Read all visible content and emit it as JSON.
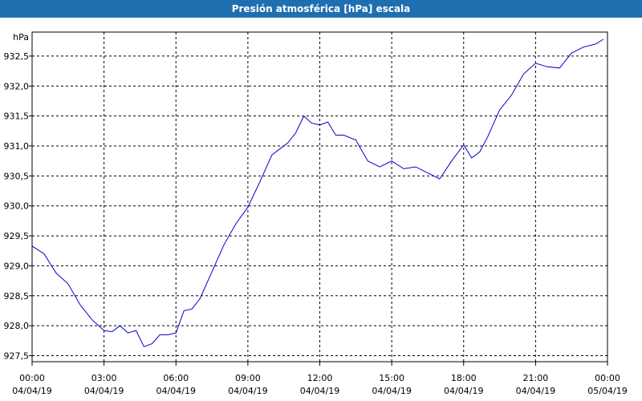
{
  "window": {
    "title": "Presión atmosférica [hPa] escala"
  },
  "chart_data": {
    "type": "line",
    "ylabel": "hPa",
    "ylim": [
      927.4,
      932.9
    ],
    "yticks": [
      927.5,
      928.0,
      928.5,
      929.0,
      929.5,
      930.0,
      930.5,
      931.0,
      931.5,
      932.0,
      932.5
    ],
    "ytick_labels": [
      "927,5",
      "928,0",
      "928,5",
      "929,0",
      "929,5",
      "930,0",
      "930,5",
      "931,0",
      "931,5",
      "932,0",
      "932,5"
    ],
    "xlim": [
      "04/04/19 00:00",
      "05/04/19 00:00"
    ],
    "xticks": [
      {
        "time": "00:00",
        "date": "04/04/19"
      },
      {
        "time": "03:00",
        "date": "04/04/19"
      },
      {
        "time": "06:00",
        "date": "04/04/19"
      },
      {
        "time": "09:00",
        "date": "04/04/19"
      },
      {
        "time": "12:00",
        "date": "04/04/19"
      },
      {
        "time": "15:00",
        "date": "04/04/19"
      },
      {
        "time": "18:00",
        "date": "04/04/19"
      },
      {
        "time": "21:00",
        "date": "04/04/19"
      },
      {
        "time": "00:00",
        "date": "05/04/19"
      }
    ],
    "grid": true,
    "line_color": "#0000cc",
    "series": [
      {
        "x": [
          "00:00",
          "00:30",
          "01:00",
          "01:30",
          "02:00",
          "02:30",
          "03:00",
          "03:20",
          "03:40",
          "04:00",
          "04:20",
          "04:40",
          "05:00",
          "05:20",
          "05:40",
          "06:00",
          "06:20",
          "06:40",
          "07:00",
          "07:30",
          "08:00",
          "08:30",
          "09:00",
          "09:30",
          "10:00",
          "10:20",
          "10:40",
          "11:00",
          "11:20",
          "11:40",
          "12:00",
          "12:20",
          "12:40",
          "13:00",
          "13:30",
          "14:00",
          "14:30",
          "15:00",
          "15:30",
          "16:00",
          "16:30",
          "17:00",
          "17:30",
          "18:00",
          "18:20",
          "18:40",
          "19:00",
          "19:30",
          "20:00",
          "20:30",
          "21:00",
          "21:30",
          "22:00",
          "22:30",
          "23:00",
          "23:30",
          "23:50"
        ],
        "y": [
          929.33,
          929.2,
          928.88,
          928.7,
          928.35,
          928.1,
          927.92,
          927.9,
          928.0,
          927.88,
          927.92,
          927.65,
          927.7,
          927.85,
          927.85,
          927.88,
          928.25,
          928.28,
          928.45,
          928.9,
          929.35,
          929.7,
          929.98,
          930.4,
          930.85,
          930.95,
          931.05,
          931.22,
          931.5,
          931.38,
          931.35,
          931.4,
          931.18,
          931.18,
          931.1,
          930.75,
          930.65,
          930.75,
          930.62,
          930.65,
          930.55,
          930.45,
          930.75,
          931.02,
          930.8,
          930.9,
          931.15,
          931.6,
          931.85,
          932.2,
          932.38,
          932.32,
          932.3,
          932.55,
          932.65,
          932.7,
          932.78
        ]
      }
    ]
  }
}
